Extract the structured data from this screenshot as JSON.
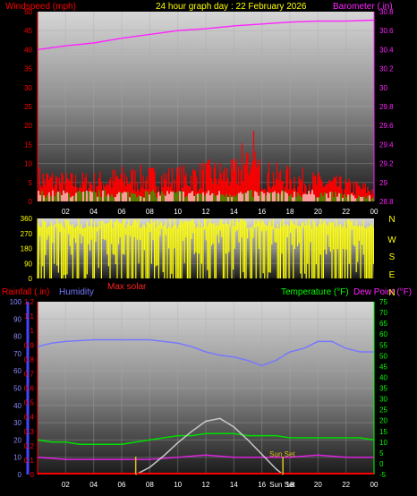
{
  "header": {
    "title": "24 hour graph day : 22 February 2026",
    "left_label": "Windspeed (mph)",
    "right_label": "Barometer (.in)"
  },
  "colors": {
    "wind": "#ff0000",
    "gust_low": "#00cc00",
    "gust_white": "#ffffff",
    "barometer": "#ff22ff",
    "direction": "#ffff00",
    "humidity": "#7777ff",
    "temperature": "#00dd00",
    "dewpoint": "#dd22dd",
    "solar": "#c8c8c8",
    "rain": "#ff0000",
    "sun": "#e0c020",
    "axis_right_temp": "#00ff00",
    "title": "#ffff00"
  },
  "x_ticks": [
    "02",
    "04",
    "06",
    "08",
    "10",
    "12",
    "14",
    "16",
    "18",
    "20",
    "22",
    "00"
  ],
  "chart_data": [
    {
      "type": "line",
      "name_left_axis": "Windspeed (mph)",
      "name_right_axis": "Barometer (.in)",
      "x_range": [
        0,
        24
      ],
      "left_ylim": [
        0,
        50
      ],
      "left_ticks": [
        "0",
        "5",
        "10",
        "15",
        "20",
        "25",
        "30",
        "35",
        "40",
        "45",
        "50"
      ],
      "right_ylim": [
        28.8,
        30.8
      ],
      "right_ticks": [
        "28.8",
        "29",
        "29.2",
        "29.4",
        "29.6",
        "29.8",
        "30",
        "30.2",
        "30.4",
        "30.6",
        "30.8"
      ],
      "series": [
        {
          "key": "barometer",
          "x": [
            0,
            2,
            4,
            6,
            8,
            10,
            12,
            14,
            16,
            18,
            20,
            22,
            24
          ],
          "values": [
            30.4,
            30.44,
            30.47,
            30.52,
            30.56,
            30.6,
            30.62,
            30.65,
            30.67,
            30.69,
            30.7,
            30.7,
            30.71
          ]
        },
        {
          "key": "wind",
          "x": [
            0,
            2,
            4,
            6,
            8,
            10,
            12,
            14,
            15,
            16,
            18,
            20,
            22,
            24
          ],
          "values": [
            6,
            5,
            5,
            6,
            6,
            6,
            7,
            7,
            10,
            7,
            6,
            5,
            4,
            3
          ]
        },
        {
          "key": "gust",
          "x": [
            0,
            4,
            8,
            12,
            16,
            20,
            24
          ],
          "values": [
            2,
            2,
            2,
            2,
            2,
            2,
            1
          ]
        }
      ]
    },
    {
      "type": "scatter",
      "name_axis": "Wind direction",
      "x_range": [
        0,
        24
      ],
      "ylim": [
        0,
        360
      ],
      "left_ticks": [
        "0",
        "90",
        "180",
        "270",
        "360"
      ],
      "right_ticks": [
        "N",
        "W",
        "S",
        "E",
        "N"
      ]
    },
    {
      "type": "line",
      "legend": [
        {
          "key": "rain",
          "label": "Rainfall (.in)"
        },
        {
          "key": "humidity",
          "label": "Humidity"
        },
        {
          "key": "solar",
          "label": "Max solar"
        },
        {
          "key": "temperature",
          "label": "Temperature (°F)"
        },
        {
          "key": "dewpoint",
          "label": "Dew Point (°F)"
        }
      ],
      "x_range": [
        0,
        24
      ],
      "humidity_ylim": [
        0,
        100
      ],
      "humidity_ticks": [
        "0",
        "10",
        "20",
        "30",
        "40",
        "50",
        "60",
        "70",
        "80",
        "90",
        "100"
      ],
      "rain_ylim": [
        0,
        1.2
      ],
      "rain_ticks": [
        "0",
        "0.1",
        "0.2",
        "0.3",
        "0.4",
        "0.5",
        "0.6",
        "0.7",
        "0.8",
        "0.9",
        "1",
        "1.1",
        "1.2"
      ],
      "temp_ylim": [
        -5,
        75
      ],
      "temp_ticks": [
        "-5",
        "0",
        "5",
        "10",
        "15",
        "20",
        "25",
        "30",
        "35",
        "40",
        "45",
        "50",
        "55",
        "60",
        "65",
        "70",
        "75"
      ],
      "series": [
        {
          "key": "humidity",
          "x": [
            0,
            1,
            2,
            4,
            6,
            8,
            9,
            10,
            11,
            12,
            13,
            14,
            15,
            16,
            17,
            18,
            19,
            20,
            21,
            22,
            23,
            24
          ],
          "values": [
            74,
            76,
            77,
            78,
            78,
            78,
            77,
            76,
            74,
            71,
            69,
            68,
            66,
            63,
            66,
            71,
            73,
            77,
            77,
            73,
            71,
            71
          ]
        },
        {
          "key": "temperature",
          "x": [
            0,
            1,
            2,
            3,
            4,
            5,
            6,
            7,
            8,
            9,
            10,
            11,
            12,
            13,
            14,
            15,
            16,
            17,
            18,
            19,
            20,
            21,
            22,
            23,
            24
          ],
          "values": [
            11,
            10,
            10,
            9,
            9,
            9,
            9,
            10,
            11,
            12,
            13,
            13,
            14,
            14,
            14,
            13,
            13,
            13,
            12,
            12,
            12,
            12,
            12,
            12,
            11
          ]
        },
        {
          "key": "dewpoint",
          "x": [
            0,
            2,
            4,
            6,
            8,
            10,
            12,
            14,
            16,
            18,
            20,
            22,
            24
          ],
          "values": [
            3,
            2,
            2,
            2,
            2,
            3,
            4,
            3,
            3,
            3,
            4,
            3,
            3
          ]
        },
        {
          "key": "solar",
          "x": [
            7,
            8,
            9,
            10,
            11,
            12,
            13,
            14,
            15,
            16,
            17,
            17.5
          ],
          "values": [
            0,
            0.05,
            0.13,
            0.22,
            0.3,
            0.37,
            0.39,
            0.33,
            0.24,
            0.14,
            0.04,
            0
          ]
        },
        {
          "key": "rain",
          "x": [
            0,
            24
          ],
          "values": [
            0,
            0
          ]
        }
      ],
      "sun_rise_x": 7,
      "sun_set_x": 17.5,
      "sun_set_label": "Sun Set"
    }
  ]
}
